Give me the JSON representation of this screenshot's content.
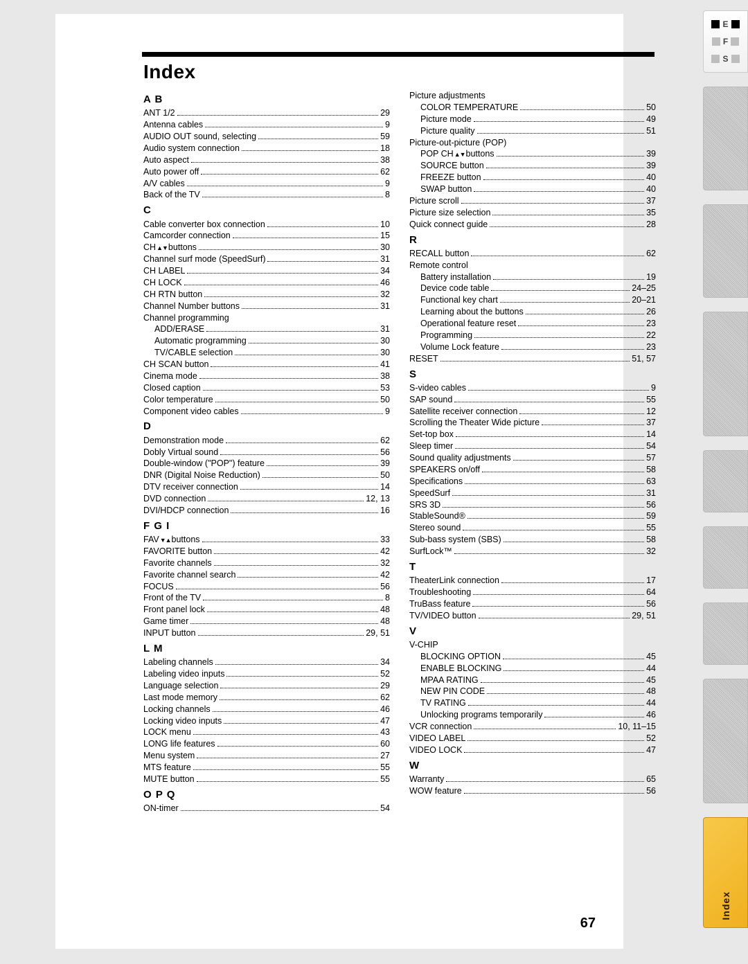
{
  "page_title": "Index",
  "page_number": "67",
  "side_tab_label": "Index",
  "efs_letters": [
    "E",
    "F",
    "S"
  ],
  "left_sections": [
    {
      "head": "A B",
      "entries": [
        {
          "label": "ANT 1/2",
          "pg": "29"
        },
        {
          "label": "Antenna cables",
          "pg": "9"
        },
        {
          "label": "AUDIO OUT sound, selecting",
          "pg": "59"
        },
        {
          "label": "Audio system connection",
          "pg": "18"
        },
        {
          "label": "Auto aspect",
          "pg": "38"
        },
        {
          "label": "Auto power off",
          "pg": "62"
        },
        {
          "label": "A/V cables",
          "pg": "9"
        },
        {
          "label": "Back of the TV",
          "pg": "8"
        }
      ]
    },
    {
      "head": "C",
      "entries": [
        {
          "label": "Cable converter box connection",
          "pg": "10"
        },
        {
          "label": "Camcorder connection",
          "pg": "15"
        },
        {
          "label": "CH ",
          "sym": "updown",
          "label2": " buttons",
          "pg": "30"
        },
        {
          "label": "Channel surf mode (SpeedSurf)",
          "pg": "31"
        },
        {
          "label": "CH LABEL",
          "pg": "34"
        },
        {
          "label": "CH LOCK",
          "pg": "46"
        },
        {
          "label": "CH RTN button",
          "pg": "32"
        },
        {
          "label": "Channel Number buttons",
          "pg": "31"
        },
        {
          "label": "Channel programming",
          "noline": true
        },
        {
          "label": "ADD/ERASE",
          "pg": "31",
          "sub": true
        },
        {
          "label": "Automatic programming",
          "pg": "30",
          "sub": true
        },
        {
          "label": "TV/CABLE selection",
          "pg": "30",
          "sub": true
        },
        {
          "label": "CH SCAN button",
          "pg": "41"
        },
        {
          "label": "Cinema mode",
          "pg": "38"
        },
        {
          "label": "Closed caption",
          "pg": "53"
        },
        {
          "label": "Color temperature",
          "pg": "50"
        },
        {
          "label": "Component video cables",
          "pg": "9"
        }
      ]
    },
    {
      "head": "D",
      "entries": [
        {
          "label": "Demonstration mode",
          "pg": "62"
        },
        {
          "label": "Dobly Virtual sound",
          "pg": "56"
        },
        {
          "label": "Double-window (\"POP\") feature",
          "pg": "39"
        },
        {
          "label": "DNR (Digital Noise Reduction)",
          "pg": "50"
        },
        {
          "label": "DTV receiver connection",
          "pg": "14"
        },
        {
          "label": "DVD connection",
          "pg": "12, 13"
        },
        {
          "label": "DVI/HDCP connection",
          "pg": "16"
        }
      ]
    },
    {
      "head": "F G I",
      "entries": [
        {
          "label": "FAV ",
          "sym": "downup",
          "label2": " buttons",
          "pg": "33"
        },
        {
          "label": "FAVORITE button",
          "pg": "42"
        },
        {
          "label": "Favorite channels",
          "pg": "32"
        },
        {
          "label": "Favorite channel search",
          "pg": "42"
        },
        {
          "label": "FOCUS",
          "pg": "56"
        },
        {
          "label": "Front of the TV",
          "pg": "8"
        },
        {
          "label": "Front panel lock",
          "pg": "48"
        },
        {
          "label": "Game timer",
          "pg": "48"
        },
        {
          "label": "INPUT button",
          "pg": "29, 51"
        }
      ]
    },
    {
      "head": "L M",
      "entries": [
        {
          "label": "Labeling channels",
          "pg": "34"
        },
        {
          "label": "Labeling video inputs",
          "pg": "52"
        },
        {
          "label": "Language selection",
          "pg": "29"
        },
        {
          "label": "Last mode memory",
          "pg": "62"
        },
        {
          "label": "Locking channels",
          "pg": "46"
        },
        {
          "label": "Locking video inputs",
          "pg": "47"
        },
        {
          "label": "LOCK menu",
          "pg": "43"
        },
        {
          "label": "LONG life features",
          "pg": "60"
        },
        {
          "label": "Menu system",
          "pg": "27"
        },
        {
          "label": "MTS feature",
          "pg": "55"
        },
        {
          "label": "MUTE button",
          "pg": "55"
        }
      ]
    },
    {
      "head": "O P Q",
      "entries": [
        {
          "label": "ON-timer",
          "pg": "54"
        }
      ]
    }
  ],
  "right_sections": [
    {
      "head": null,
      "entries": [
        {
          "label": "Picture adjustments",
          "noline": true
        },
        {
          "label": "COLOR TEMPERATURE",
          "pg": "50",
          "sub": true
        },
        {
          "label": "Picture mode",
          "pg": "49",
          "sub": true
        },
        {
          "label": "Picture quality",
          "pg": "51",
          "sub": true
        },
        {
          "label": "Picture-out-picture (POP)",
          "noline": true
        },
        {
          "label": "POP CH ",
          "sym": "updown",
          "label2": " buttons",
          "pg": "39",
          "sub": true
        },
        {
          "label": "SOURCE button",
          "pg": "39",
          "sub": true
        },
        {
          "label": "FREEZE button",
          "pg": "40",
          "sub": true
        },
        {
          "label": "SWAP button",
          "pg": "40",
          "sub": true
        },
        {
          "label": "Picture scroll",
          "pg": "37"
        },
        {
          "label": "Picture size selection",
          "pg": "35"
        },
        {
          "label": "Quick connect guide",
          "pg": "28"
        }
      ]
    },
    {
      "head": "R",
      "entries": [
        {
          "label": "RECALL button",
          "pg": "62"
        },
        {
          "label": "Remote control",
          "noline": true
        },
        {
          "label": "Battery installation",
          "pg": "19",
          "sub": true
        },
        {
          "label": "Device code table",
          "pg": "24–25",
          "sub": true
        },
        {
          "label": "Functional key chart",
          "pg": "20–21",
          "sub": true
        },
        {
          "label": "Learning about the buttons",
          "pg": "26",
          "sub": true
        },
        {
          "label": "Operational feature reset",
          "pg": "23",
          "sub": true
        },
        {
          "label": "Programming",
          "pg": "22",
          "sub": true
        },
        {
          "label": "Volume Lock feature",
          "pg": "23",
          "sub": true
        },
        {
          "label": "RESET",
          "pg": "51, 57"
        }
      ]
    },
    {
      "head": "S",
      "entries": [
        {
          "label": "S-video cables",
          "pg": "9"
        },
        {
          "label": "SAP sound",
          "pg": "55"
        },
        {
          "label": "Satellite receiver connection",
          "pg": "12"
        },
        {
          "label": "Scrolling the Theater Wide picture",
          "pg": "37"
        },
        {
          "label": "Set-top box",
          "pg": "14"
        },
        {
          "label": "Sleep timer",
          "pg": "54"
        },
        {
          "label": "Sound quality adjustments",
          "pg": "57"
        },
        {
          "label": "SPEAKERS on/off",
          "pg": "58"
        },
        {
          "label": "Specifications",
          "pg": "63"
        },
        {
          "label": "SpeedSurf",
          "pg": "31"
        },
        {
          "label": "SRS 3D",
          "pg": "56"
        },
        {
          "label": "StableSound®",
          "pg": "59"
        },
        {
          "label": "Stereo sound",
          "pg": "55"
        },
        {
          "label": "Sub-bass system (SBS)",
          "pg": "58"
        },
        {
          "label": "SurfLock™",
          "pg": "32"
        }
      ]
    },
    {
      "head": "T",
      "entries": [
        {
          "label": "TheaterLink connection",
          "pg": "17"
        },
        {
          "label": "Troubleshooting",
          "pg": "64"
        },
        {
          "label": "TruBass feature",
          "pg": "56"
        },
        {
          "label": "TV/VIDEO button",
          "pg": "29, 51"
        }
      ]
    },
    {
      "head": "V",
      "entries": [
        {
          "label": "V-CHIP",
          "noline": true
        },
        {
          "label": "BLOCKING OPTION",
          "pg": "45",
          "sub": true
        },
        {
          "label": "ENABLE BLOCKING",
          "pg": "44",
          "sub": true
        },
        {
          "label": "MPAA RATING",
          "pg": "45",
          "sub": true
        },
        {
          "label": "NEW PIN CODE",
          "pg": "48",
          "sub": true
        },
        {
          "label": "TV RATING",
          "pg": "44",
          "sub": true
        },
        {
          "label": "Unlocking programs temporarily",
          "pg": "46",
          "sub": true
        },
        {
          "label": "VCR connection",
          "pg": "10, 11–15"
        },
        {
          "label": "VIDEO LABEL",
          "pg": "52"
        },
        {
          "label": "VIDEO LOCK",
          "pg": "47"
        }
      ]
    },
    {
      "head": "W",
      "entries": [
        {
          "label": "Warranty",
          "pg": "65"
        },
        {
          "label": "WOW feature",
          "pg": "56"
        }
      ]
    }
  ]
}
